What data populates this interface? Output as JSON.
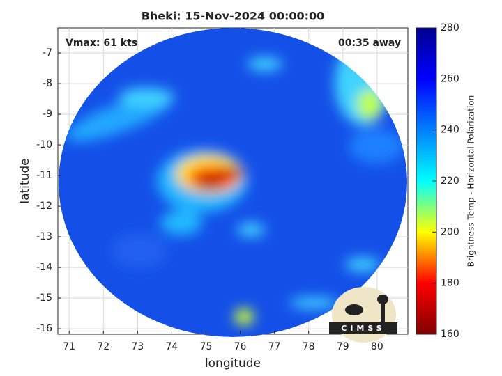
{
  "chart_data": {
    "type": "image",
    "title": "Bheki: 15-Nov-2024 00:00:00",
    "annotations": [
      "Vmax: 61 kts",
      "00:35 away"
    ],
    "xlabel": "longitude",
    "ylabel": "latitude",
    "xlim": [
      70.67,
      80.9
    ],
    "xticks": [
      71,
      72,
      73,
      74,
      75,
      76,
      77,
      78,
      79,
      80
    ],
    "ylim": [
      -16.18,
      -6.18
    ],
    "yticks": [
      -16,
      -15,
      -14,
      -13,
      -12,
      -11,
      -10,
      -9,
      -8,
      -7
    ],
    "grid": true,
    "colorbar": {
      "label": "Brightness Temp - Horizontal Polarization",
      "lim": [
        160,
        280
      ],
      "ticks": [
        160,
        180,
        200,
        220,
        240,
        260,
        280
      ],
      "colors": [
        "#800000",
        "#ff0000",
        "#ffff00",
        "#00ffff",
        "#0080ff",
        "#0000ff",
        "#00008f"
      ]
    },
    "logo": "CIMSS"
  }
}
